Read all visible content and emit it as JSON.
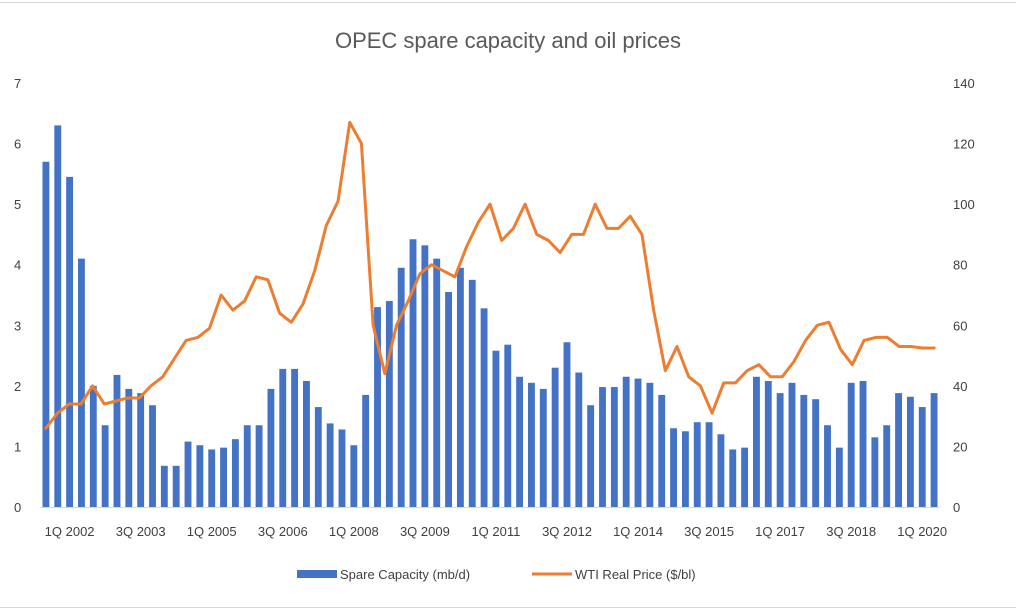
{
  "chart_data": {
    "type": "bar+line",
    "title": "OPEC spare capacity and oil prices",
    "x_tick_labels": [
      "1Q 2002",
      "3Q 2003",
      "1Q 2005",
      "3Q 2006",
      "1Q 2008",
      "3Q 2009",
      "1Q 2011",
      "3Q 2012",
      "1Q 2014",
      "3Q 2015",
      "1Q 2017",
      "3Q 2018",
      "1Q 2020"
    ],
    "y_left": {
      "min": 0,
      "max": 7,
      "step": 1,
      "ticks": [
        "0",
        "1",
        "2",
        "3",
        "4",
        "5",
        "6",
        "7"
      ]
    },
    "y_right": {
      "min": 0,
      "max": 140,
      "step": 20,
      "ticks": [
        "0",
        "20",
        "40",
        "60",
        "80",
        "100",
        "120",
        "140"
      ]
    },
    "gridlines": false,
    "legend_position": "bottom",
    "series": [
      {
        "name": "Spare Capacity (mb/d)",
        "type": "bar",
        "axis": "left",
        "color": "#4472C4",
        "values": [
          5.7,
          6.3,
          5.45,
          4.1,
          2.0,
          1.35,
          2.18,
          1.95,
          1.88,
          1.68,
          0.68,
          0.68,
          1.08,
          1.02,
          0.95,
          0.98,
          1.12,
          1.35,
          1.35,
          1.95,
          2.28,
          2.28,
          2.08,
          1.65,
          1.38,
          1.28,
          1.02,
          1.85,
          3.3,
          3.4,
          3.95,
          4.42,
          4.32,
          4.1,
          3.55,
          3.95,
          3.75,
          3.28,
          2.58,
          2.68,
          2.15,
          2.05,
          1.95,
          2.3,
          2.72,
          2.22,
          1.68,
          1.98,
          1.98,
          2.15,
          2.12,
          2.05,
          1.85,
          1.3,
          1.25,
          1.4,
          1.4,
          1.2,
          0.95,
          0.98,
          2.15,
          2.08,
          1.88,
          2.05,
          1.85,
          1.78,
          1.35,
          0.98,
          2.05,
          2.08,
          1.15,
          1.35,
          1.88,
          1.82,
          1.65,
          1.88
        ]
      },
      {
        "name": "WTI Real Price ($/bl)",
        "type": "line",
        "axis": "right",
        "color": "#ED7D31",
        "values": [
          26,
          31,
          34,
          34,
          40,
          34,
          35,
          36,
          36,
          40,
          43,
          49,
          55,
          56,
          59,
          70,
          65,
          68,
          76,
          75,
          64,
          61,
          67,
          78,
          93,
          101,
          127,
          120,
          60,
          44,
          60,
          68,
          77,
          80,
          78,
          76,
          86,
          94,
          100,
          88,
          92,
          100,
          90,
          88,
          84,
          90,
          90,
          100,
          92,
          92,
          96,
          90,
          65,
          45,
          53,
          43,
          40,
          31,
          41,
          41,
          45,
          47,
          43,
          43,
          48,
          55,
          60,
          61,
          52,
          47,
          55,
          56,
          56,
          53,
          53,
          52.5,
          52.5
        ]
      }
    ]
  }
}
